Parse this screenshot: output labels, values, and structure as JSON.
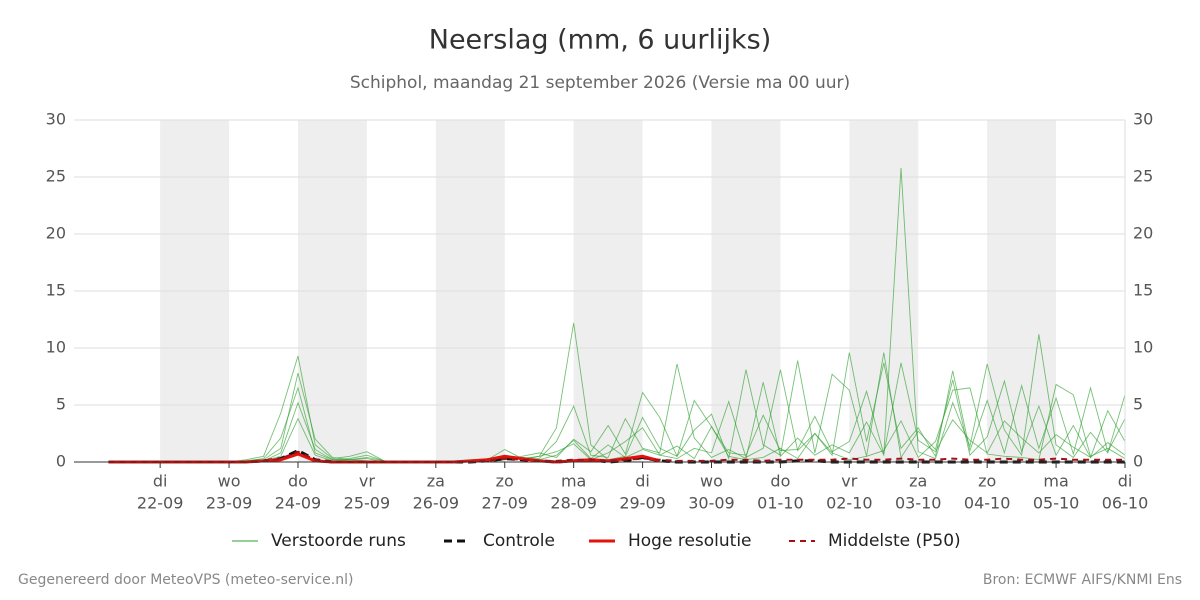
{
  "chart_data": {
    "type": "line",
    "title": "Neerslag (mm, 6 uurlijks)",
    "subtitle": "Schiphol, maandag 21 september 2026 (Versie ma 00 uur)",
    "footer_left": "Gegenereerd door MeteoVPS (meteo-service.nl)",
    "footer_right": "Bron: ECMWF AIFS/KNMI Ens",
    "xlim": [
      -0.25,
      15
    ],
    "xticks": [
      {
        "value": 1,
        "label": "22-09"
      },
      {
        "value": 2,
        "label": "23-09"
      },
      {
        "value": 3,
        "label": "24-09"
      },
      {
        "value": 4,
        "label": "25-09"
      },
      {
        "value": 5,
        "label": "26-09"
      },
      {
        "value": 6,
        "label": "27-09"
      },
      {
        "value": 7,
        "label": "28-09"
      },
      {
        "value": 8,
        "label": "29-09"
      },
      {
        "value": 9,
        "label": "30-09"
      },
      {
        "value": 10,
        "label": "01-10"
      },
      {
        "value": 11,
        "label": "02-10"
      },
      {
        "value": 12,
        "label": "03-10"
      },
      {
        "value": 13,
        "label": "04-10"
      },
      {
        "value": 14,
        "label": "05-10"
      },
      {
        "value": 15,
        "label": "06-10"
      }
    ],
    "xtick_weekdays": [
      "di",
      "wo",
      "do",
      "vr",
      "za",
      "zo",
      "ma",
      "di",
      "wo",
      "do",
      "vr",
      "za",
      "zo",
      "ma",
      "di"
    ],
    "ylim": [
      0,
      30
    ],
    "yticks": [
      0,
      5,
      10,
      15,
      20,
      25,
      30
    ],
    "grid": true,
    "x": [
      0.25,
      0.5,
      0.75,
      1,
      1.25,
      1.5,
      1.75,
      2,
      2.25,
      2.5,
      2.75,
      3,
      3.25,
      3.5,
      3.75,
      4,
      4.25,
      4.5,
      4.75,
      5,
      5.25,
      5.5,
      5.75,
      6,
      6.25,
      6.5,
      6.75,
      7,
      7.25,
      7.5,
      7.75,
      8,
      8.25,
      8.5,
      8.75,
      9,
      9.25,
      9.5,
      9.75,
      10,
      10.25,
      10.5,
      10.75,
      11,
      11.25,
      11.5,
      11.75,
      12,
      12.25,
      12.5,
      12.75,
      13,
      13.25,
      13.5,
      13.75,
      14,
      14.25,
      14.5,
      14.75,
      15
    ],
    "ensemble": {
      "name": "Verstoorde runs",
      "color": "#2ca02c",
      "members": [
        [
          0,
          0,
          0,
          0,
          0,
          0,
          0,
          0,
          0.2,
          0.5,
          4.3,
          9.3,
          1.5,
          0.3,
          0.5,
          0.9,
          0.1,
          0,
          0,
          0,
          0,
          0,
          0,
          0.2,
          0.3,
          0.5,
          3,
          12.2,
          1.5,
          0.2,
          0.5,
          3.9,
          1.2,
          0.5,
          5.4,
          3.1,
          0.5,
          0.2,
          0.4,
          1.2,
          0.3,
          2.5,
          0.8,
          0.2,
          0.5,
          1.0,
          3.6,
          0.4,
          1.8,
          6.3,
          6.5,
          0.7,
          0.5,
          0.4,
          0.2,
          6.8,
          5.9,
          0.5,
          1.2,
          0.3
        ],
        [
          0,
          0,
          0,
          0,
          0,
          0,
          0,
          0,
          0.1,
          0.3,
          2.1,
          6.5,
          0.8,
          0.2,
          0.3,
          0.6,
          0.1,
          0,
          0,
          0,
          0,
          0,
          0.1,
          0.2,
          0.4,
          0.3,
          1.8,
          4.9,
          0.6,
          0.4,
          3.8,
          1.2,
          0.8,
          8.6,
          2.1,
          0.4,
          1.1,
          0.3,
          7.0,
          0.5,
          2.1,
          0.6,
          1.5,
          0.8,
          3.5,
          0.6,
          25.8,
          0.9,
          0.3,
          5.2,
          1.4,
          8.6,
          2.8,
          0.6,
          11.2,
          1.5,
          0.4,
          2.6,
          0.8,
          5.9
        ],
        [
          0,
          0,
          0,
          0,
          0,
          0,
          0,
          0,
          0.1,
          0.2,
          1.2,
          7.8,
          2.0,
          0.4,
          0.2,
          0.3,
          0,
          0,
          0,
          0,
          0,
          0.1,
          0.3,
          0.2,
          0.5,
          0.8,
          0.4,
          2.0,
          0.9,
          3.2,
          0.7,
          6.1,
          3.9,
          0.5,
          2.8,
          4.2,
          0.3,
          8.1,
          1.5,
          0.6,
          8.9,
          0.8,
          7.7,
          6.3,
          0.5,
          9.6,
          0.4,
          2.7,
          1.1,
          7.2,
          0.6,
          2.2,
          7.1,
          0.9,
          4.9,
          0.6,
          3.2,
          0.4,
          4.5,
          1.8
        ],
        [
          0,
          0,
          0,
          0,
          0,
          0,
          0,
          0,
          0,
          0.1,
          0.8,
          5.2,
          1.1,
          0.2,
          0.2,
          0.1,
          0,
          0,
          0,
          0,
          0,
          0,
          0.2,
          1.1,
          0.3,
          0.2,
          0.6,
          1.9,
          0.3,
          1.5,
          0.4,
          1.1,
          0.6,
          0.3,
          1.2,
          0.8,
          5.3,
          0.4,
          1.2,
          8.1,
          1.0,
          2.5,
          0.6,
          9.6,
          1.8,
          8.7,
          1.2,
          3.0,
          0.5,
          8.0,
          1.0,
          5.4,
          0.8,
          6.7,
          1.2,
          5.6,
          0.7,
          6.5,
          0.9,
          3.8
        ],
        [
          0,
          0,
          0,
          0,
          0,
          0,
          0,
          0,
          0.1,
          0.1,
          0.5,
          3.8,
          0.6,
          0.1,
          0.2,
          0.4,
          0.1,
          0,
          0,
          0,
          0,
          0,
          0.1,
          0.4,
          0.2,
          0.5,
          0.9,
          1.6,
          0.2,
          0.8,
          1.8,
          3.0,
          0.6,
          1.4,
          0.3,
          3.1,
          0.8,
          0.6,
          4.1,
          1.0,
          1.1,
          4.0,
          0.9,
          1.8,
          6.2,
          0.7,
          8.7,
          1.9,
          0.9,
          3.7,
          1.9,
          0.8,
          3.6,
          2.1,
          0.8,
          2.4,
          1.3,
          0.4,
          1.7,
          0.6
        ]
      ]
    },
    "series": [
      {
        "name": "Controle",
        "color": "#111111",
        "dash": "8 5",
        "width": 3,
        "values": [
          0,
          0,
          0,
          0,
          0,
          0,
          0,
          0,
          0,
          0.1,
          0.3,
          1.0,
          0.2,
          0,
          0,
          0,
          0,
          0,
          0,
          0,
          0,
          0,
          0.1,
          0.3,
          0.2,
          0.1,
          0,
          0.1,
          0.2,
          0,
          0.1,
          0.4,
          0.1,
          0,
          0,
          0,
          0,
          0,
          0,
          0,
          0.1,
          0.1,
          0,
          0,
          0,
          0,
          0,
          0,
          0,
          0,
          0,
          0,
          0,
          0,
          0,
          0,
          0,
          0,
          0,
          0
        ]
      },
      {
        "name": "Hoge resolutie",
        "color": "#e3120b",
        "dash": null,
        "width": 3,
        "values": [
          0,
          0,
          0,
          0,
          0,
          0,
          0,
          0,
          0,
          0.1,
          0.2,
          0.7,
          0.1,
          0,
          0,
          0,
          0,
          0,
          0,
          0,
          0,
          0.1,
          0.2,
          0.5,
          0.3,
          0.1,
          0,
          0.1,
          0.2,
          0.1,
          0.3,
          0.5,
          0.1,
          null,
          null,
          null,
          null,
          null,
          null,
          null,
          null,
          null,
          null,
          null,
          null,
          null,
          null,
          null,
          null,
          null,
          null,
          null,
          null,
          null,
          null,
          null,
          null,
          null,
          null,
          null
        ]
      },
      {
        "name": "Middelste (P50)",
        "color": "#a50f15",
        "dash": "6 5",
        "width": 2,
        "values": [
          0,
          0,
          0,
          0,
          0,
          0,
          0,
          0,
          0,
          0.1,
          0.3,
          0.9,
          0.2,
          0,
          0,
          0,
          0,
          0,
          0,
          0,
          0,
          0,
          0.1,
          0.3,
          0.2,
          0.1,
          0.1,
          0.2,
          0.2,
          0.1,
          0.2,
          0.3,
          0.2,
          0.1,
          0.1,
          0.1,
          0.2,
          0.2,
          0.1,
          0.2,
          0.2,
          0.2,
          0.2,
          0.3,
          0.2,
          0.2,
          0.3,
          0.2,
          0.2,
          0.3,
          0.2,
          0.2,
          0.3,
          0.2,
          0.2,
          0.3,
          0.2,
          0.2,
          0.2,
          0.2
        ]
      }
    ]
  }
}
